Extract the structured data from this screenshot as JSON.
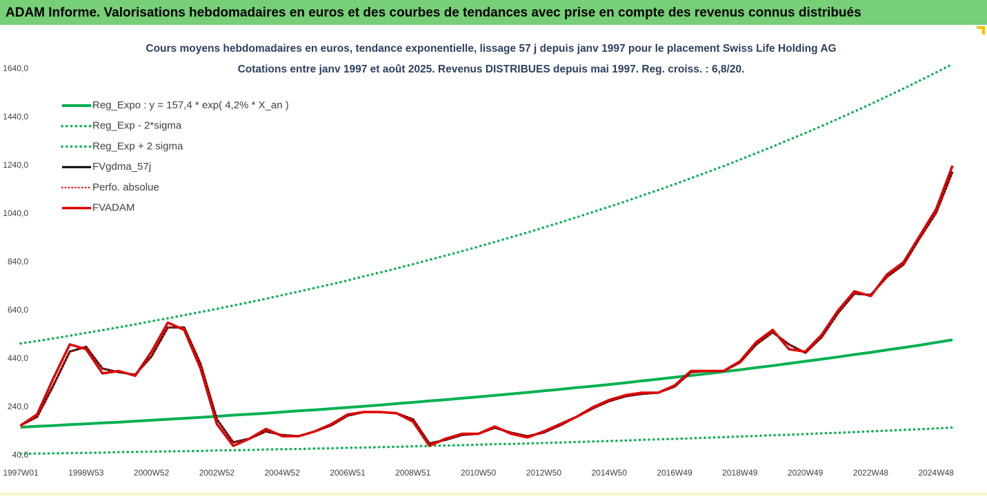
{
  "header": "ADAM Informe. Valorisations hebdomadaires en euros et des courbes de tendances avec prise en compte des revenus connus distribués",
  "chart_data": {
    "type": "line",
    "title": "Cours moyens hebdomadaires en euros, tendance exponentielle, lissage 57 j depuis janv 1997 pour le placement Swiss Life Holding AG",
    "subtitle": "Cotations entre janv 1997 et août 2025. Revenus DISTRIBUES depuis mai 1997. Reg. croiss. : 6,8/20.",
    "categories": [
      "1997W01",
      null,
      null,
      null,
      "1998W53",
      null,
      null,
      null,
      "2000W52",
      null,
      null,
      null,
      "2002W52",
      null,
      null,
      null,
      "2004W52",
      null,
      null,
      null,
      "2006W51",
      null,
      null,
      null,
      "2008W51",
      null,
      null,
      null,
      "2010W50",
      null,
      null,
      null,
      "2012W50",
      null,
      null,
      null,
      "2014W50",
      null,
      null,
      null,
      "2016W49",
      null,
      null,
      null,
      "2018W49",
      null,
      null,
      null,
      "2020W49",
      null,
      null,
      null,
      "2022W48",
      null,
      null,
      null,
      "2024W48",
      null
    ],
    "ylim": [
      40,
      1700
    ],
    "yticks": [
      {
        "value": 40,
        "label": "40,0"
      },
      {
        "value": 240,
        "label": "240,0"
      },
      {
        "value": 440,
        "label": "440,0"
      },
      {
        "value": 640,
        "label": "640,0"
      },
      {
        "value": 840,
        "label": "840,0"
      },
      {
        "value": 1040,
        "label": "1040,0"
      },
      {
        "value": 1240,
        "label": "1240,0"
      },
      {
        "value": 1440,
        "label": "1440,0"
      },
      {
        "value": 1640,
        "label": "1640,0"
      }
    ],
    "grid": false,
    "legend": "upper left",
    "series": [
      {
        "name": "Reg_Expo : y = 157,4 * exp( 4,2% *  X_an )",
        "color": "#00b050",
        "line_style": "solid",
        "line_width": 4,
        "values": [
          157,
          161,
          164,
          168,
          171,
          175,
          178,
          182,
          186,
          190,
          194,
          198,
          202,
          207,
          211,
          215,
          220,
          225,
          229,
          234,
          239,
          244,
          249,
          255,
          260,
          266,
          271,
          277,
          283,
          289,
          295,
          301,
          308,
          314,
          321,
          327,
          334,
          341,
          349,
          356,
          364,
          371,
          379,
          387,
          395,
          404,
          412,
          421,
          430,
          439,
          448,
          458,
          467,
          477,
          487,
          497,
          508,
          519
        ]
      },
      {
        "name": "Reg_Exp - 2*sigma",
        "color": "#00b050",
        "line_style": "dotted",
        "line_width": 3.5,
        "values": [
          47,
          48,
          49,
          50,
          51,
          52,
          54,
          55,
          56,
          57,
          58,
          59,
          61,
          62,
          63,
          65,
          66,
          67,
          69,
          70,
          72,
          73,
          75,
          76,
          78,
          80,
          81,
          83,
          85,
          87,
          88,
          90,
          92,
          94,
          96,
          98,
          100,
          102,
          105,
          107,
          109,
          111,
          114,
          116,
          119,
          121,
          124,
          126,
          129,
          132,
          134,
          137,
          140,
          143,
          146,
          149,
          152,
          156
        ]
      },
      {
        "name": "Reg_Exp + 2 sigma",
        "color": "#00b050",
        "line_style": "dotted",
        "line_width": 3.5,
        "values": [
          504,
          514,
          525,
          536,
          548,
          559,
          571,
          583,
          596,
          608,
          621,
          634,
          647,
          661,
          675,
          689,
          704,
          719,
          734,
          749,
          765,
          782,
          798,
          815,
          832,
          850,
          868,
          886,
          905,
          924,
          944,
          963,
          984,
          1005,
          1026,
          1048,
          1070,
          1092,
          1116,
          1139,
          1163,
          1188,
          1213,
          1238,
          1265,
          1292,
          1319,
          1347,
          1375,
          1404,
          1434,
          1464,
          1495,
          1527,
          1559,
          1592,
          1626,
          1660
        ]
      },
      {
        "name": "FVgdma_57j",
        "color": "#000000",
        "line_style": "solid",
        "line_width": 3,
        "values": [
          165,
          200,
          330,
          470,
          490,
          400,
          385,
          375,
          450,
          570,
          570,
          420,
          190,
          95,
          110,
          140,
          125,
          120,
          140,
          165,
          205,
          220,
          220,
          215,
          190,
          90,
          105,
          125,
          130,
          155,
          135,
          120,
          135,
          165,
          200,
          235,
          265,
          285,
          295,
          300,
          325,
          385,
          390,
          390,
          425,
          500,
          550,
          500,
          465,
          530,
          630,
          710,
          705,
          780,
          830,
          940,
          1045,
          1215
        ]
      },
      {
        "name": "Perfo. absolue",
        "color": "#ff0000",
        "line_style": "dotted",
        "line_width": 2.5,
        "values": [
          165,
          200,
          330,
          470,
          490,
          400,
          385,
          375,
          450,
          570,
          570,
          420,
          190,
          95,
          110,
          140,
          125,
          120,
          140,
          165,
          205,
          220,
          220,
          215,
          190,
          90,
          105,
          125,
          130,
          155,
          135,
          120,
          135,
          165,
          200,
          235,
          265,
          285,
          295,
          300,
          325,
          385,
          390,
          390,
          425,
          500,
          550,
          500,
          465,
          530,
          630,
          710,
          705,
          780,
          830,
          940,
          1045,
          1215
        ]
      },
      {
        "name": "FVADAM",
        "color": "#e00000",
        "line_style": "solid",
        "line_width": 3.5,
        "values": [
          165,
          210,
          360,
          500,
          480,
          380,
          390,
          370,
          470,
          590,
          560,
          400,
          170,
          80,
          110,
          150,
          120,
          120,
          140,
          170,
          210,
          220,
          220,
          215,
          180,
          80,
          110,
          130,
          130,
          160,
          130,
          115,
          140,
          170,
          200,
          240,
          270,
          290,
          300,
          300,
          330,
          390,
          390,
          390,
          430,
          510,
          560,
          480,
          470,
          540,
          640,
          720,
          700,
          790,
          840,
          950,
          1060,
          1240
        ]
      }
    ]
  }
}
